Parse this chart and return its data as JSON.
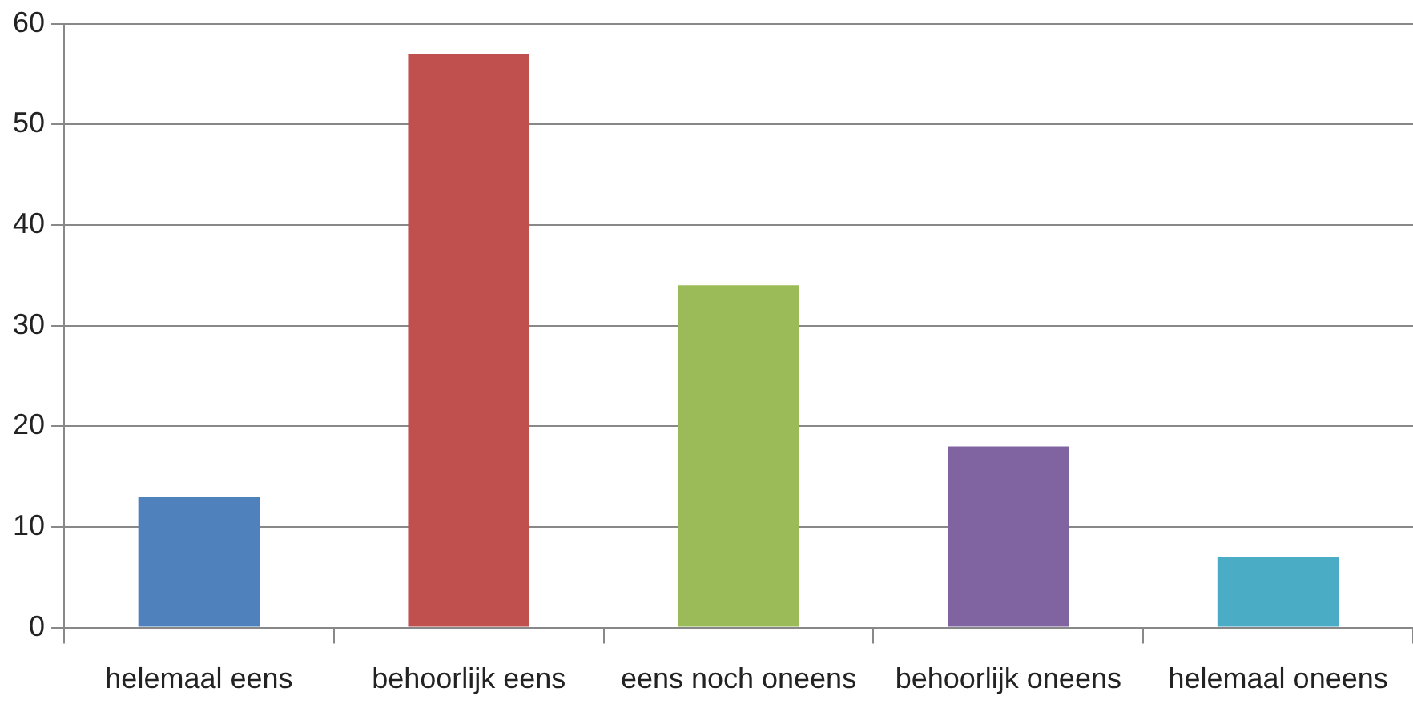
{
  "chart_data": {
    "type": "bar",
    "categories": [
      "helemaal eens",
      "behoorlijk eens",
      "eens noch oneens",
      "behoorlijk oneens",
      "helemaal oneens"
    ],
    "values": [
      13,
      57,
      34,
      18,
      7
    ],
    "colors": [
      "#4f81bd",
      "#c0504d",
      "#9bbb59",
      "#8064a2",
      "#4bacc6"
    ],
    "ylim": [
      0,
      60
    ],
    "yticks": [
      0,
      10,
      20,
      30,
      40,
      50,
      60
    ],
    "grid": "y",
    "legend": false
  }
}
